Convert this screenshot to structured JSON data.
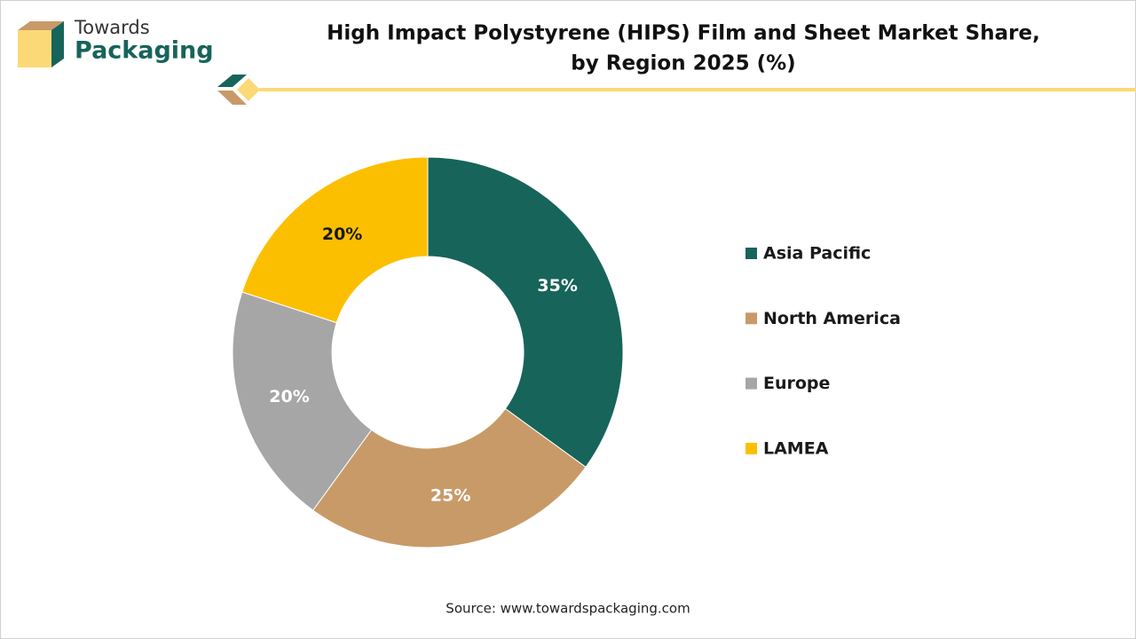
{
  "logo": {
    "line1": "Towards",
    "line2": "Packaging"
  },
  "chart_data": {
    "type": "donut",
    "title": [
      "High Impact Polystyrene (HIPS) Film and Sheet Market Share,",
      "by Region 2025 (%)"
    ],
    "categories": [
      "Asia Pacific",
      "North America",
      "Europe",
      "LAMEA"
    ],
    "values": [
      35,
      25,
      20,
      20
    ],
    "value_labels": [
      "35%",
      "25%",
      "20%",
      "20%"
    ],
    "colors": [
      "#17645a",
      "#c89a68",
      "#a6a6a6",
      "#fcbf00"
    ],
    "label_colors": [
      "#ffffff",
      "#ffffff",
      "#ffffff",
      "#1a1a1a"
    ],
    "legend": "right"
  },
  "source": "Source: www.towardspackaging.com"
}
